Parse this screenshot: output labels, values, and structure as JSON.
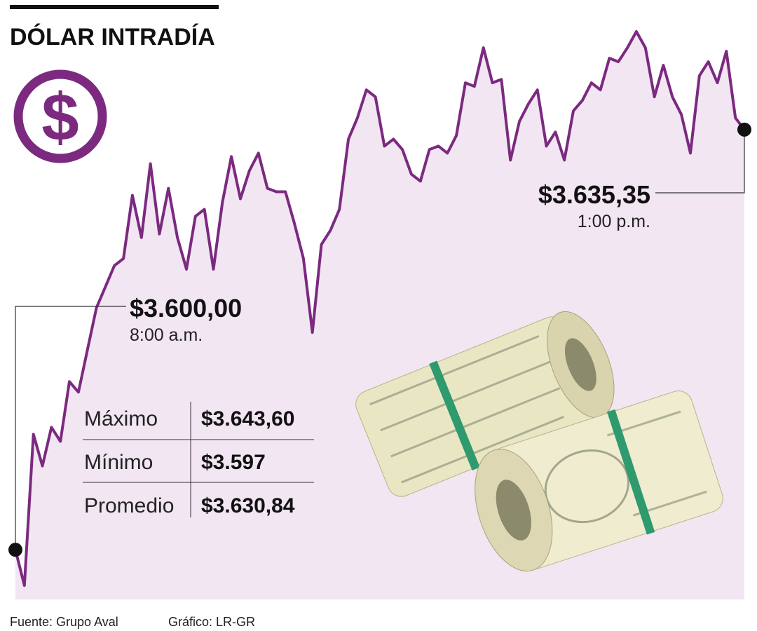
{
  "chart_data": {
    "type": "line",
    "title": "DÓLAR INTRADÍA",
    "icon_symbol": "$",
    "series": [
      {
        "name": "Dólar",
        "color": "#7b2a80",
        "values": [
          3600.0,
          3597.0,
          3609.72,
          3607.05,
          3610.31,
          3609.12,
          3614.15,
          3613.26,
          3616.81,
          3620.36,
          3622.13,
          3623.91,
          3624.5,
          3629.82,
          3626.27,
          3632.48,
          3626.57,
          3630.41,
          3626.27,
          3623.61,
          3628.05,
          3628.64,
          3623.61,
          3629.23,
          3633.08,
          3629.53,
          3631.89,
          3633.37,
          3630.41,
          3630.12,
          3630.12,
          3627.46,
          3624.5,
          3618.29,
          3625.68,
          3626.87,
          3628.64,
          3634.55,
          3636.33,
          3638.69,
          3638.1,
          3633.96,
          3634.55,
          3633.67,
          3631.6,
          3631.01,
          3633.67,
          3633.96,
          3633.37,
          3634.85,
          3639.29,
          3638.99,
          3642.24,
          3639.29,
          3639.58,
          3632.78,
          3636.03,
          3637.51,
          3638.69,
          3633.96,
          3635.15,
          3632.78,
          3636.92,
          3637.81,
          3639.29,
          3638.69,
          3641.36,
          3641.06,
          3642.24,
          3643.6,
          3642.24,
          3638.1,
          3640.76,
          3638.1,
          3636.62,
          3633.37,
          3639.88,
          3641.06,
          3639.29,
          3641.95,
          3636.33,
          3635.35
        ]
      }
    ],
    "annotations": [
      {
        "text": "$3.600,00",
        "time": "8:00 a.m."
      },
      {
        "text": "$3.635,35",
        "time": "1:00 p.m."
      }
    ]
  },
  "stats": [
    {
      "label": "Máximo",
      "value": "$3.643,60"
    },
    {
      "label": "Mínimo",
      "value": "$3.597"
    },
    {
      "label": "Promedio",
      "value": "$3.630,84"
    }
  ],
  "footer": {
    "source": "Fuente: Grupo Aval",
    "credit": "Gráfico: LR-GR"
  }
}
